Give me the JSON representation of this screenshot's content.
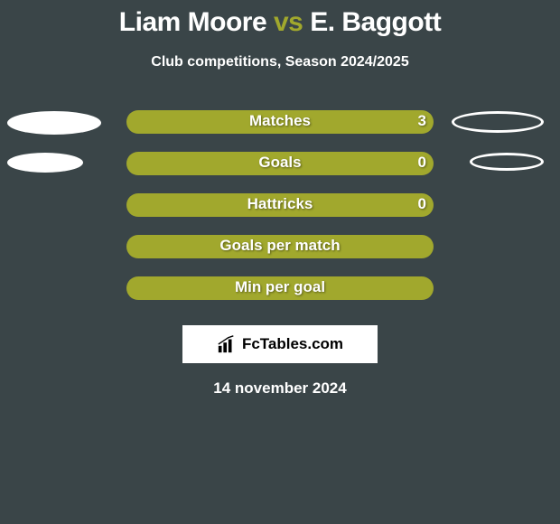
{
  "title": {
    "player1": "Liam Moore",
    "vs": "vs",
    "player2": "E. Baggott"
  },
  "subtitle": "Club competitions, Season 2024/2025",
  "colors": {
    "background": "#3a4548",
    "bar_base": "#a1a82d",
    "ellipse_left_fill": "#ffffff",
    "ellipse_right_fill": "#3a4548",
    "ellipse_right_border": "#ffffff",
    "text": "#ffffff",
    "vs_color": "#a1a82d"
  },
  "stats": [
    {
      "label": "Matches",
      "left_value": "",
      "right_value": "3",
      "left_fill_color": "#a1a82d",
      "left_fill_pct": 0,
      "right_fill_color": "#a1a82d",
      "right_fill_pct": 0,
      "ellipse_left_w": 104,
      "ellipse_left_h": 26,
      "ellipse_right_w": 102,
      "ellipse_right_h": 24
    },
    {
      "label": "Goals",
      "left_value": "",
      "right_value": "0",
      "left_fill_color": "#a1a82d",
      "left_fill_pct": 0,
      "right_fill_color": "#a1a82d",
      "right_fill_pct": 0,
      "ellipse_left_w": 84,
      "ellipse_left_h": 22,
      "ellipse_right_w": 82,
      "ellipse_right_h": 20
    },
    {
      "label": "Hattricks",
      "left_value": "",
      "right_value": "0",
      "left_fill_color": "#a1a82d",
      "left_fill_pct": 0,
      "right_fill_color": "#a1a82d",
      "right_fill_pct": 0,
      "ellipse_left_w": 0,
      "ellipse_left_h": 0,
      "ellipse_right_w": 0,
      "ellipse_right_h": 0
    },
    {
      "label": "Goals per match",
      "left_value": "",
      "right_value": "",
      "left_fill_color": "#a1a82d",
      "left_fill_pct": 0,
      "right_fill_color": "#a1a82d",
      "right_fill_pct": 0,
      "ellipse_left_w": 0,
      "ellipse_left_h": 0,
      "ellipse_right_w": 0,
      "ellipse_right_h": 0
    },
    {
      "label": "Min per goal",
      "left_value": "",
      "right_value": "",
      "left_fill_color": "#a1a82d",
      "left_fill_pct": 0,
      "right_fill_color": "#a1a82d",
      "right_fill_pct": 0,
      "ellipse_left_w": 0,
      "ellipse_left_h": 0,
      "ellipse_right_w": 0,
      "ellipse_right_h": 0
    }
  ],
  "logo_text": "FcTables.com",
  "date": "14 november 2024",
  "typography": {
    "title_fontsize": 30,
    "subtitle_fontsize": 16,
    "stat_fontsize": 17,
    "date_fontsize": 17
  }
}
